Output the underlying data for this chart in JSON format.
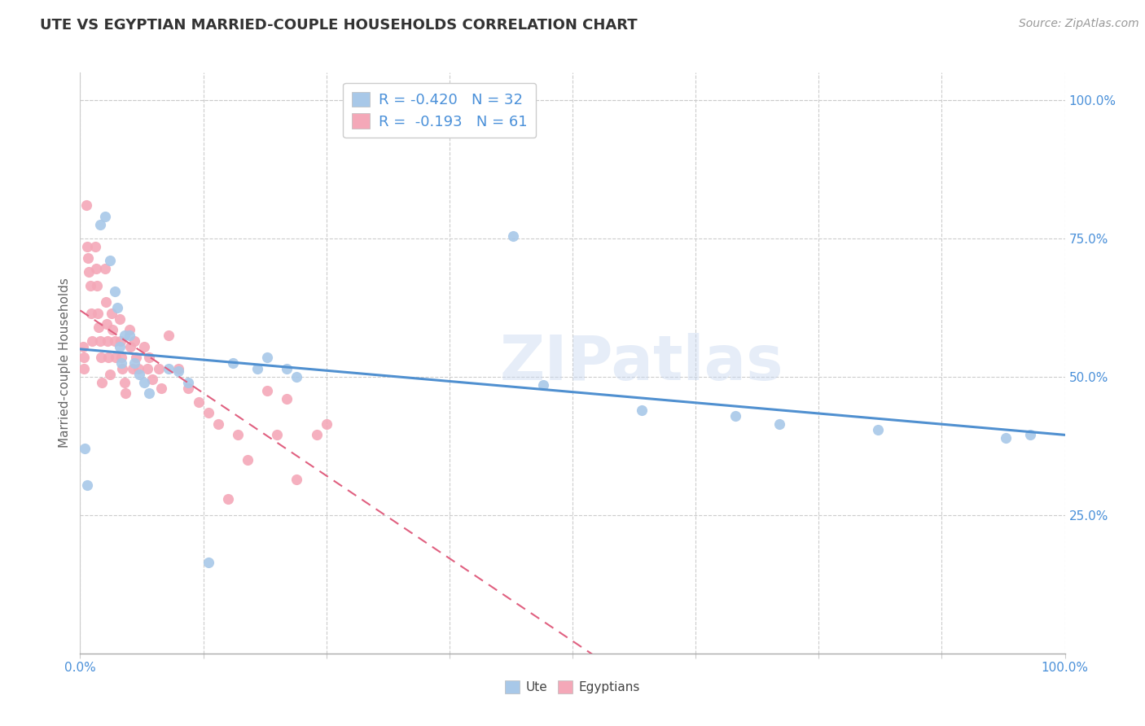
{
  "title": "UTE VS EGYPTIAN MARRIED-COUPLE HOUSEHOLDS CORRELATION CHART",
  "source": "Source: ZipAtlas.com",
  "ylabel": "Married-couple Households",
  "xlabel": "",
  "watermark": "ZIPatlas",
  "ute_R": -0.42,
  "ute_N": 32,
  "egy_R": -0.193,
  "egy_N": 61,
  "ute_color": "#a8c8e8",
  "egy_color": "#f4a8b8",
  "ute_line_color": "#5090d0",
  "egy_line_color": "#e06080",
  "xlim": [
    0.0,
    1.0
  ],
  "ylim": [
    0.0,
    1.05
  ],
  "xtick_positions": [
    0.0,
    0.125,
    0.25,
    0.375,
    0.5,
    0.625,
    0.75,
    0.875,
    1.0
  ],
  "xtick_labels_show": [
    true,
    false,
    false,
    false,
    true,
    false,
    false,
    false,
    true
  ],
  "xticklabels": [
    "0.0%",
    "",
    "",
    "",
    "",
    "",
    "",
    "",
    "100.0%"
  ],
  "yticks": [
    0.25,
    0.5,
    0.75,
    1.0
  ],
  "yticklabels_right": [
    "25.0%",
    "50.0%",
    "75.0%",
    "100.0%"
  ],
  "ute_x": [
    0.005,
    0.007,
    0.02,
    0.025,
    0.03,
    0.035,
    0.038,
    0.04,
    0.042,
    0.045,
    0.05,
    0.055,
    0.06,
    0.065,
    0.07,
    0.09,
    0.1,
    0.11,
    0.13,
    0.155,
    0.18,
    0.19,
    0.21,
    0.22,
    0.44,
    0.47,
    0.57,
    0.665,
    0.71,
    0.81,
    0.94,
    0.965
  ],
  "ute_y": [
    0.37,
    0.305,
    0.775,
    0.79,
    0.71,
    0.655,
    0.625,
    0.555,
    0.525,
    0.575,
    0.575,
    0.525,
    0.505,
    0.49,
    0.47,
    0.515,
    0.51,
    0.49,
    0.165,
    0.525,
    0.515,
    0.535,
    0.515,
    0.5,
    0.755,
    0.485,
    0.44,
    0.43,
    0.415,
    0.405,
    0.39,
    0.395
  ],
  "egy_x": [
    0.003,
    0.004,
    0.004,
    0.006,
    0.007,
    0.008,
    0.009,
    0.01,
    0.011,
    0.012,
    0.015,
    0.016,
    0.017,
    0.018,
    0.019,
    0.02,
    0.021,
    0.022,
    0.025,
    0.026,
    0.027,
    0.028,
    0.029,
    0.03,
    0.032,
    0.033,
    0.035,
    0.036,
    0.04,
    0.041,
    0.042,
    0.043,
    0.045,
    0.046,
    0.05,
    0.051,
    0.053,
    0.055,
    0.057,
    0.059,
    0.065,
    0.068,
    0.07,
    0.073,
    0.08,
    0.082,
    0.09,
    0.1,
    0.11,
    0.12,
    0.13,
    0.14,
    0.15,
    0.16,
    0.17,
    0.19,
    0.2,
    0.21,
    0.22,
    0.24,
    0.25
  ],
  "egy_y": [
    0.555,
    0.535,
    0.515,
    0.81,
    0.735,
    0.715,
    0.69,
    0.665,
    0.615,
    0.565,
    0.735,
    0.695,
    0.665,
    0.615,
    0.59,
    0.565,
    0.535,
    0.49,
    0.695,
    0.635,
    0.595,
    0.565,
    0.535,
    0.505,
    0.615,
    0.585,
    0.565,
    0.535,
    0.605,
    0.565,
    0.535,
    0.515,
    0.49,
    0.47,
    0.585,
    0.555,
    0.515,
    0.565,
    0.535,
    0.515,
    0.555,
    0.515,
    0.535,
    0.495,
    0.515,
    0.48,
    0.575,
    0.515,
    0.48,
    0.455,
    0.435,
    0.415,
    0.28,
    0.395,
    0.35,
    0.475,
    0.395,
    0.46,
    0.315,
    0.395,
    0.415
  ],
  "grid_color": "#cccccc",
  "spine_color": "#cccccc",
  "tick_color": "#4a90d9",
  "title_fontsize": 13,
  "label_fontsize": 11,
  "ylabel_fontsize": 11,
  "legend_fontsize": 13,
  "marker_size": 90,
  "watermark_fontsize": 55,
  "watermark_color": "#c8d8f0",
  "watermark_alpha": 0.45
}
